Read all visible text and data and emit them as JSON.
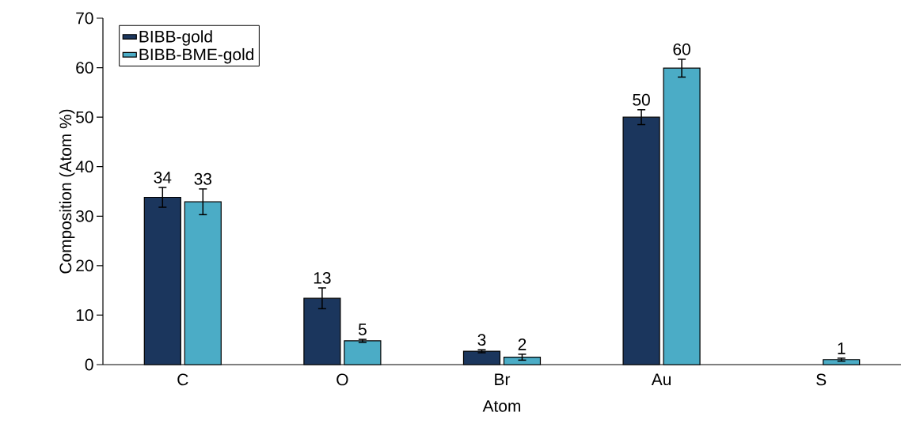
{
  "chart_data": {
    "type": "bar",
    "xlabel": "Atom",
    "ylabel": "Composition (Atom %)",
    "categories": [
      "C",
      "O",
      "Br",
      "Au",
      "S"
    ],
    "series": [
      {
        "name": "BIBB-gold",
        "color": "#1b365d",
        "values": [
          33.8,
          13.4,
          2.7,
          50.0,
          null
        ],
        "errors": [
          2.0,
          2.1,
          0.3,
          1.5,
          null
        ],
        "value_labels": [
          "34",
          "13",
          "3",
          "50",
          null
        ]
      },
      {
        "name": "BIBB-BME-gold",
        "color": "#4bacc6",
        "values": [
          32.9,
          4.8,
          1.5,
          59.9,
          1.0
        ],
        "errors": [
          2.6,
          0.3,
          0.6,
          1.8,
          0.3
        ],
        "value_labels": [
          "33",
          "5",
          "2",
          "60",
          "1"
        ]
      }
    ],
    "ylim": [
      0,
      70
    ],
    "yticks": [
      0,
      10,
      20,
      30,
      40,
      50,
      60,
      70
    ],
    "legend": "top left"
  }
}
